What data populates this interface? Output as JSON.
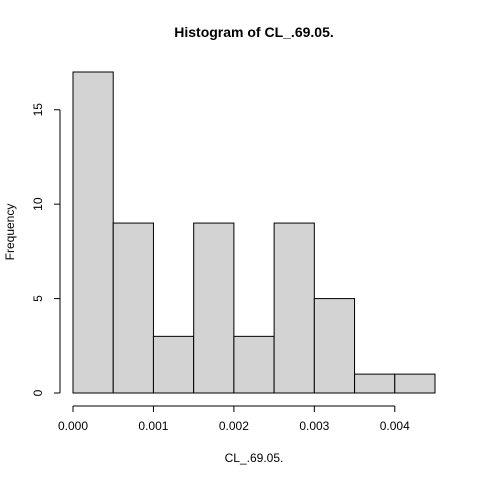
{
  "chart_data": {
    "type": "bar",
    "title": "Histogram of CL_.69.05.",
    "xlabel": "CL_.69.05.",
    "ylabel": "Frequency",
    "bins": [
      {
        "from": 0.0,
        "to": 0.0005,
        "count": 17
      },
      {
        "from": 0.0005,
        "to": 0.001,
        "count": 9
      },
      {
        "from": 0.001,
        "to": 0.0015,
        "count": 3
      },
      {
        "from": 0.0015,
        "to": 0.002,
        "count": 9
      },
      {
        "from": 0.002,
        "to": 0.0025,
        "count": 3
      },
      {
        "from": 0.0025,
        "to": 0.003,
        "count": 9
      },
      {
        "from": 0.003,
        "to": 0.0035,
        "count": 5
      },
      {
        "from": 0.0035,
        "to": 0.004,
        "count": 1
      },
      {
        "from": 0.004,
        "to": 0.0045,
        "count": 1
      }
    ],
    "xlim": [
      0.0,
      0.0045
    ],
    "ylim": [
      0,
      17
    ],
    "x_ticks": [
      0.0,
      0.001,
      0.002,
      0.003,
      0.004
    ],
    "x_tick_labels": [
      "0.000",
      "0.001",
      "0.002",
      "0.003",
      "0.004"
    ],
    "y_ticks": [
      0,
      5,
      10,
      15
    ],
    "y_tick_labels": [
      "0",
      "5",
      "10",
      "15"
    ],
    "bar_color": "#d3d3d3",
    "edge_color": "#000000",
    "grid": false,
    "legend": false
  }
}
